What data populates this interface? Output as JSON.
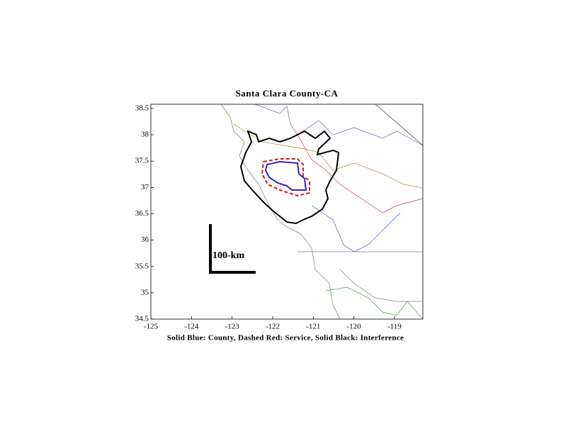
{
  "chart_data": {
    "type": "map",
    "title": "Santa Clara County-CA",
    "xlabel": "Solid Blue: County, Dashed Red: Service, Solid Black: Interference",
    "scale_label": "100-km",
    "xlim": [
      -125,
      -118.3
    ],
    "xticks": [
      -125,
      -124,
      -123,
      -122,
      -121,
      -120,
      -119
    ],
    "ylim": [
      34.5,
      38.58
    ],
    "yticks": [
      34.5,
      35,
      35.5,
      36,
      36.5,
      37,
      37.5,
      38,
      38.5
    ]
  }
}
